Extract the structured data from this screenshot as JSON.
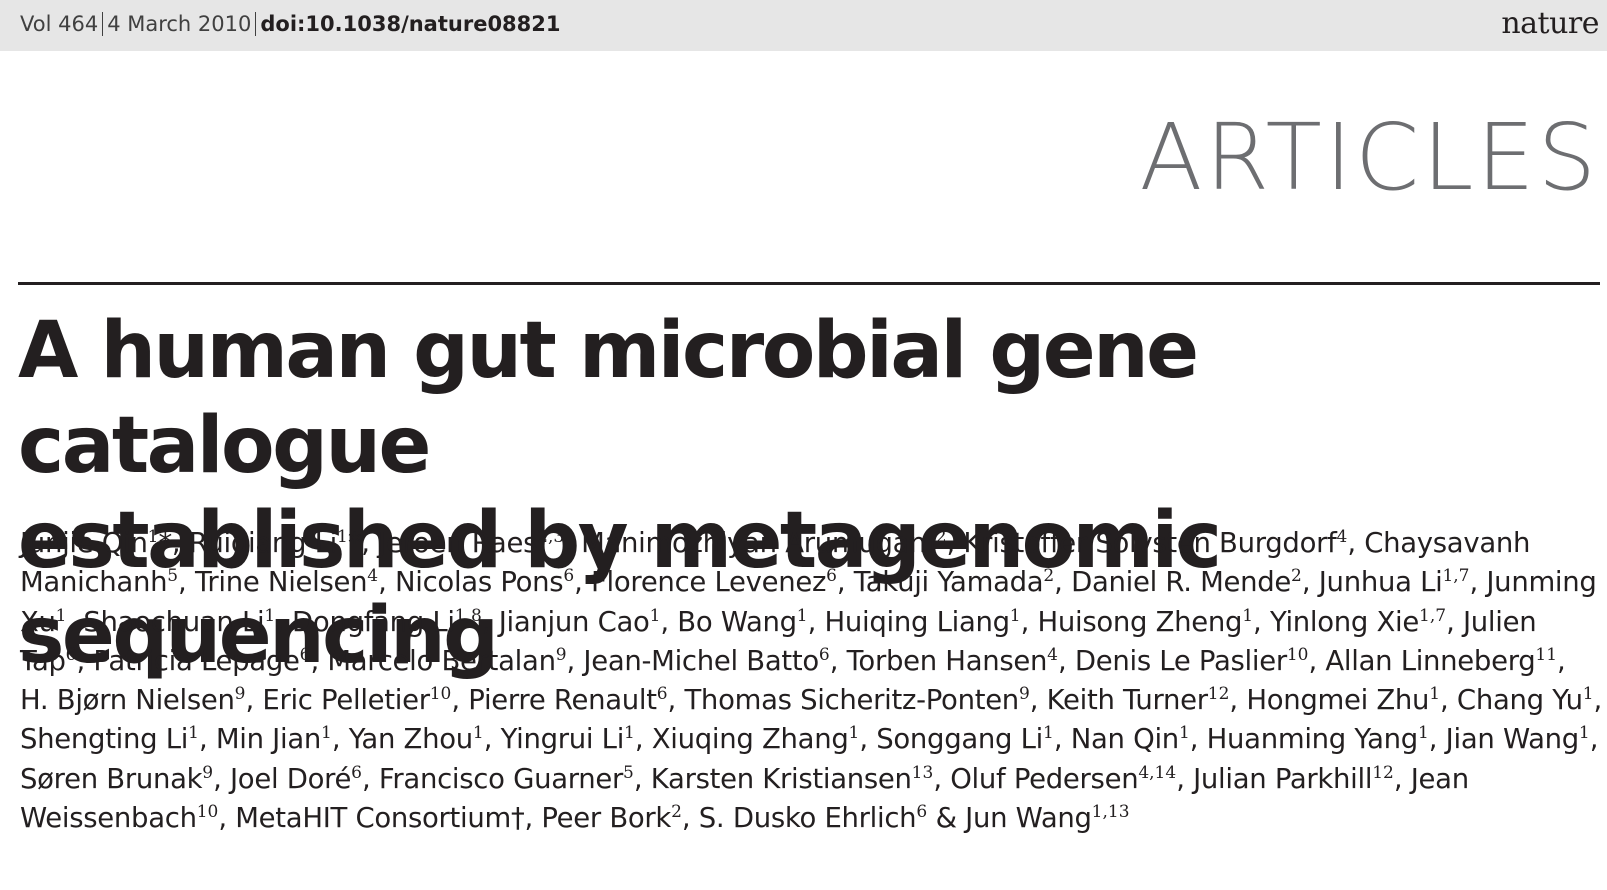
{
  "header": {
    "volume": "Vol 464",
    "date": "4 March 2010",
    "doi": "doi:10.1038/nature08821",
    "journal": "nature"
  },
  "section": "ARTICLES",
  "title_lines": [
    "A human gut microbial gene catalogue",
    "established by metagenomic sequencing"
  ],
  "authors": [
    {
      "name": "Junjie Qin",
      "aff": "1",
      "mark": "*"
    },
    {
      "name": "Ruiqiang Li",
      "aff": "1",
      "mark": "*"
    },
    {
      "name": "Jeroen Raes",
      "aff": "2,3"
    },
    {
      "name": "Manimozhiyan Arumugam",
      "aff": "2"
    },
    {
      "name": "Kristoffer Solvsten Burgdorf",
      "aff": "4"
    },
    {
      "name": "Chaysavanh Manichanh",
      "aff": "5"
    },
    {
      "name": "Trine Nielsen",
      "aff": "4"
    },
    {
      "name": "Nicolas Pons",
      "aff": "6"
    },
    {
      "name": "Florence Levenez",
      "aff": "6"
    },
    {
      "name": "Takuji Yamada",
      "aff": "2"
    },
    {
      "name": "Daniel R. Mende",
      "aff": "2"
    },
    {
      "name": "Junhua Li",
      "aff": "1,7"
    },
    {
      "name": "Junming Xu",
      "aff": "1"
    },
    {
      "name": "Shaochuan Li",
      "aff": "1"
    },
    {
      "name": "Dongfang Li",
      "aff": "1,8"
    },
    {
      "name": "Jianjun Cao",
      "aff": "1"
    },
    {
      "name": "Bo Wang",
      "aff": "1"
    },
    {
      "name": "Huiqing Liang",
      "aff": "1"
    },
    {
      "name": "Huisong Zheng",
      "aff": "1"
    },
    {
      "name": "Yinlong Xie",
      "aff": "1,7"
    },
    {
      "name": "Julien Tap",
      "aff": "6"
    },
    {
      "name": "Patricia Lepage",
      "aff": "6"
    },
    {
      "name": "Marcelo Bertalan",
      "aff": "9"
    },
    {
      "name": "Jean-Michel Batto",
      "aff": "6"
    },
    {
      "name": "Torben Hansen",
      "aff": "4"
    },
    {
      "name": "Denis Le Paslier",
      "aff": "10"
    },
    {
      "name": "Allan Linneberg",
      "aff": "11"
    },
    {
      "name": "H. Bjørn Nielsen",
      "aff": "9"
    },
    {
      "name": "Eric Pelletier",
      "aff": "10"
    },
    {
      "name": "Pierre Renault",
      "aff": "6"
    },
    {
      "name": "Thomas Sicheritz-Ponten",
      "aff": "9"
    },
    {
      "name": "Keith Turner",
      "aff": "12"
    },
    {
      "name": "Hongmei Zhu",
      "aff": "1"
    },
    {
      "name": "Chang Yu",
      "aff": "1"
    },
    {
      "name": "Shengting Li",
      "aff": "1"
    },
    {
      "name": "Min Jian",
      "aff": "1"
    },
    {
      "name": "Yan Zhou",
      "aff": "1"
    },
    {
      "name": "Yingrui Li",
      "aff": "1"
    },
    {
      "name": "Xiuqing Zhang",
      "aff": "1"
    },
    {
      "name": "Songgang Li",
      "aff": "1"
    },
    {
      "name": "Nan Qin",
      "aff": "1"
    },
    {
      "name": "Huanming Yang",
      "aff": "1"
    },
    {
      "name": "Jian Wang",
      "aff": "1"
    },
    {
      "name": "Søren Brunak",
      "aff": "9"
    },
    {
      "name": "Joel Doré",
      "aff": "6"
    },
    {
      "name": "Francisco Guarner",
      "aff": "5"
    },
    {
      "name": "Karsten Kristiansen",
      "aff": "13"
    },
    {
      "name": "Oluf Pedersen",
      "aff": "4,14"
    },
    {
      "name": "Julian Parkhill",
      "aff": "12"
    },
    {
      "name": "Jean Weissenbach",
      "aff": "10"
    },
    {
      "name": "MetaHIT Consortium†",
      "aff": ""
    },
    {
      "name": "Peer Bork",
      "aff": "2"
    },
    {
      "name": "S. Dusko Ehrlich",
      "aff": "6"
    },
    {
      "name": "Jun Wang",
      "aff": "1,13"
    }
  ],
  "separators": {
    "between": ", ",
    "last": " & "
  }
}
